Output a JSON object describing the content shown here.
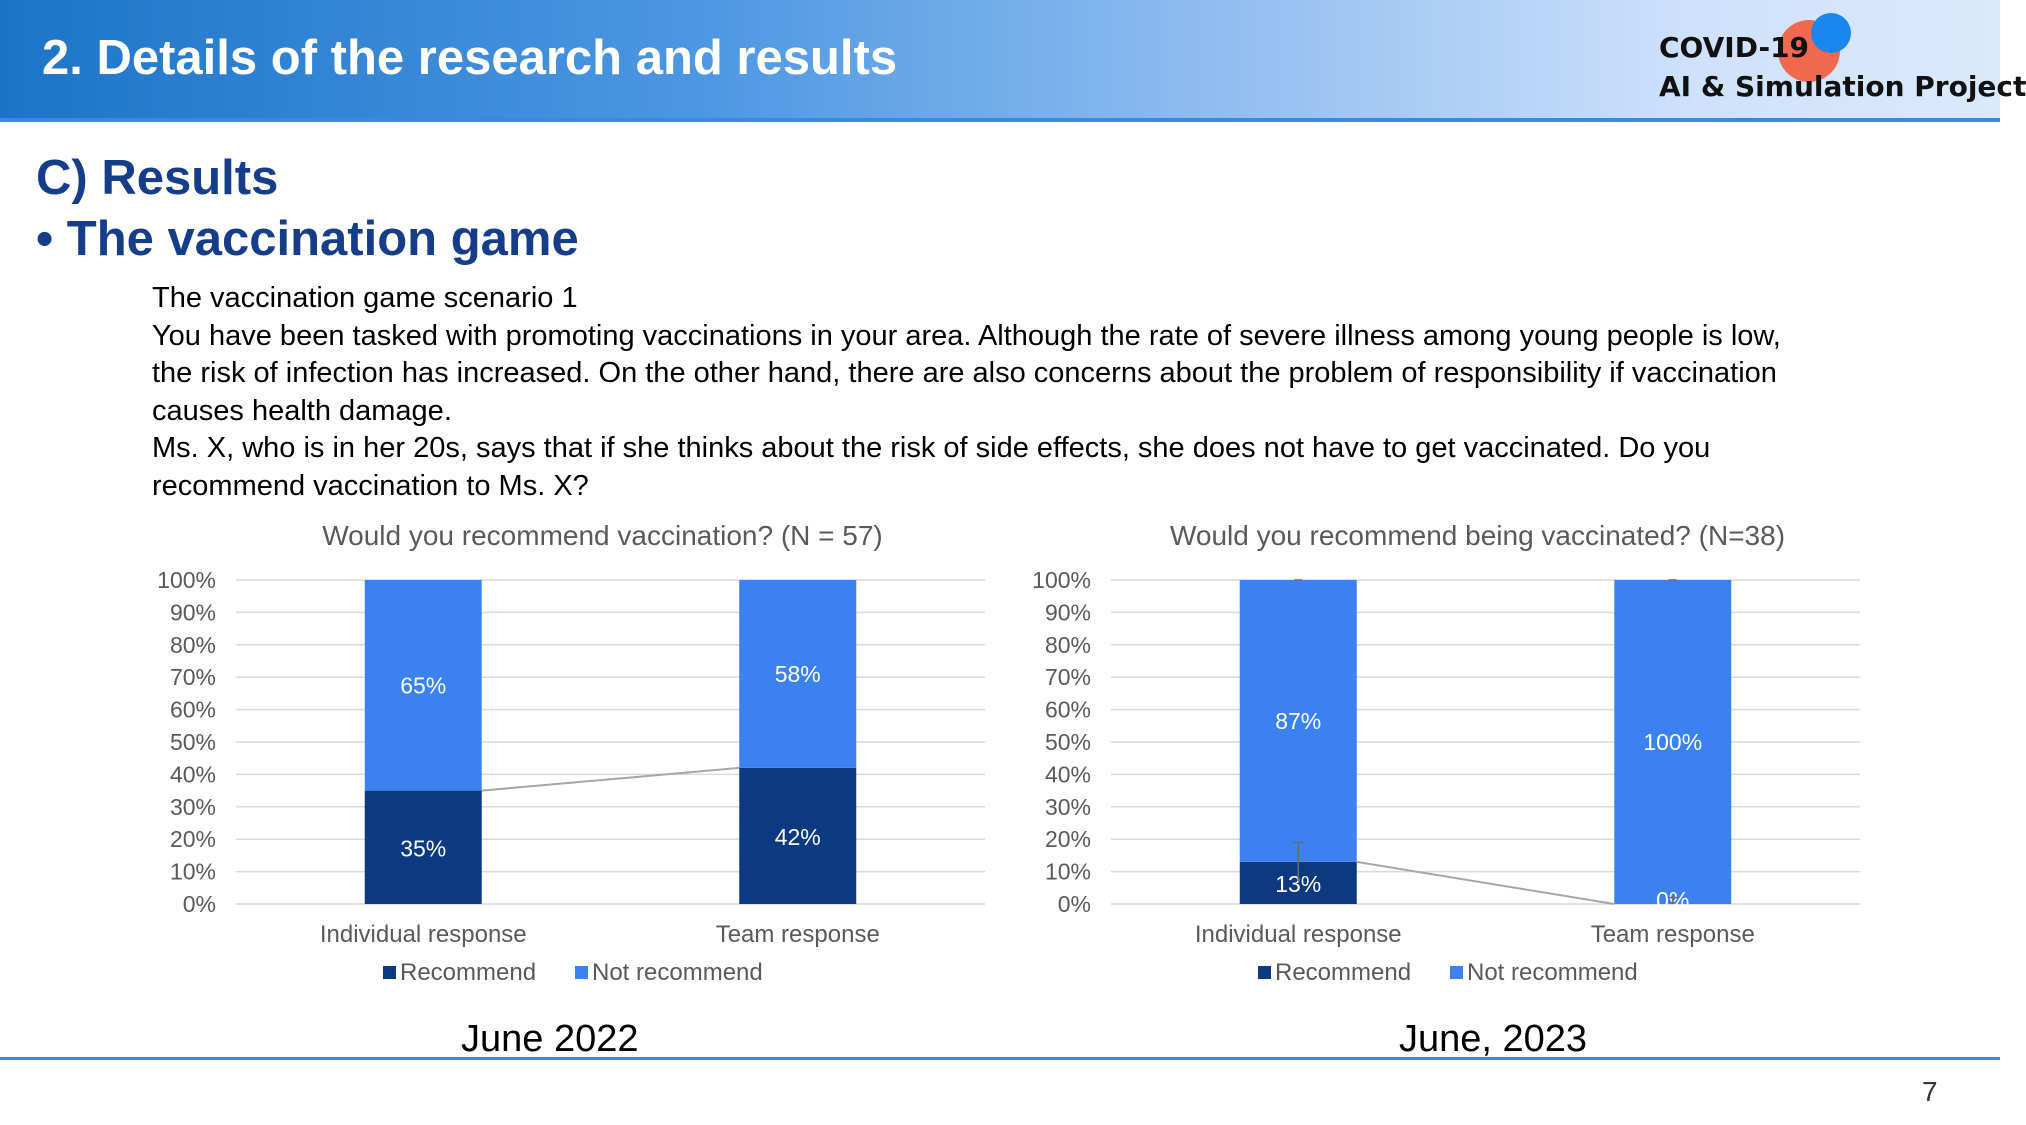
{
  "header": {
    "title": "2.  Details of the research and results",
    "logo_line1": "COVID-19",
    "logo_line2": "AI & Simulation Project"
  },
  "section": {
    "title": "C)  Results",
    "subtitle": "• The vaccination game"
  },
  "scenario_lines": [
    "The vaccination game scenario 1",
    "You have been tasked with promoting vaccinations in your area. Although the rate of severe illness among young people is low,",
    "the risk of infection has increased. On the other hand, there are also concerns about the problem of responsibility if vaccination",
    "causes health damage.",
    "Ms. X, who is in her 20s, says that if she thinks about the risk of side effects, she does not have to get vaccinated. Do you",
    "recommend vaccination to Ms. X?"
  ],
  "colors": {
    "recommend": "#0b3a82",
    "not_recommend": "#3b82f0",
    "grid": "#d9d9d9",
    "axis_text": "#595959"
  },
  "chart_data": [
    {
      "type": "bar",
      "stacked": true,
      "title": "Would you recommend vaccination? (N = 57)",
      "categories": [
        "Individual response",
        "Team response"
      ],
      "series": [
        {
          "name": "Recommend",
          "values": [
            35,
            42
          ],
          "labels": [
            "35%",
            "42%"
          ]
        },
        {
          "name": "Not recommend",
          "values": [
            65,
            58
          ],
          "labels": [
            "65%",
            "58%"
          ]
        }
      ],
      "y_ticks": [
        "0%",
        "10%",
        "20%",
        "30%",
        "40%",
        "50%",
        "60%",
        "70%",
        "80%",
        "90%",
        "100%"
      ],
      "ylim": [
        0,
        100
      ],
      "error_bars": false,
      "legend": "bottom",
      "caption": "June 2022"
    },
    {
      "type": "bar",
      "stacked": true,
      "title": "Would you recommend being vaccinated? (N=38)",
      "categories": [
        "Individual response",
        "Team response"
      ],
      "series": [
        {
          "name": "Recommend",
          "values": [
            13,
            0
          ],
          "labels": [
            "13%",
            "0%"
          ]
        },
        {
          "name": "Not recommend",
          "values": [
            87,
            100
          ],
          "labels": [
            "87%",
            "100%"
          ]
        }
      ],
      "y_ticks": [
        "0%",
        "10%",
        "20%",
        "30%",
        "40%",
        "50%",
        "60%",
        "70%",
        "80%",
        "90%",
        "100%"
      ],
      "ylim": [
        0,
        100
      ],
      "error_bars": true,
      "error_bar_values": [
        6,
        2
      ],
      "legend": "bottom",
      "caption": "June, 2023"
    }
  ],
  "page_number": "7"
}
